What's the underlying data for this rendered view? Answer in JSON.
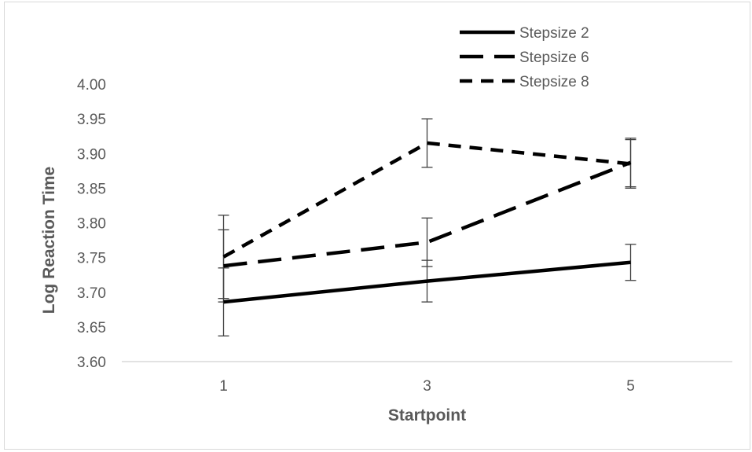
{
  "chart_data": {
    "type": "line",
    "title": "",
    "xlabel": "Startpoint",
    "ylabel": "Log Reaction Time",
    "categories": [
      "1",
      "3",
      "5"
    ],
    "ylim": [
      3.6,
      4.0
    ],
    "yticks": [
      "3.60",
      "3.65",
      "3.70",
      "3.75",
      "3.80",
      "3.85",
      "3.90",
      "3.95",
      "4.00"
    ],
    "grid": false,
    "legend_position": "top-right",
    "series": [
      {
        "name": "Stepsize 2",
        "dash": "solid",
        "values": [
          3.686,
          3.716,
          3.743
        ],
        "error": [
          0.049,
          0.03,
          0.026
        ]
      },
      {
        "name": "Stepsize 6",
        "dash": "long-dash",
        "values": [
          3.738,
          3.772,
          3.887
        ],
        "error": [
          0.052,
          0.035,
          0.035
        ]
      },
      {
        "name": "Stepsize 8",
        "dash": "short-dash",
        "values": [
          3.751,
          3.915,
          3.885
        ],
        "error": [
          0.06,
          0.035,
          0.035
        ]
      }
    ]
  }
}
